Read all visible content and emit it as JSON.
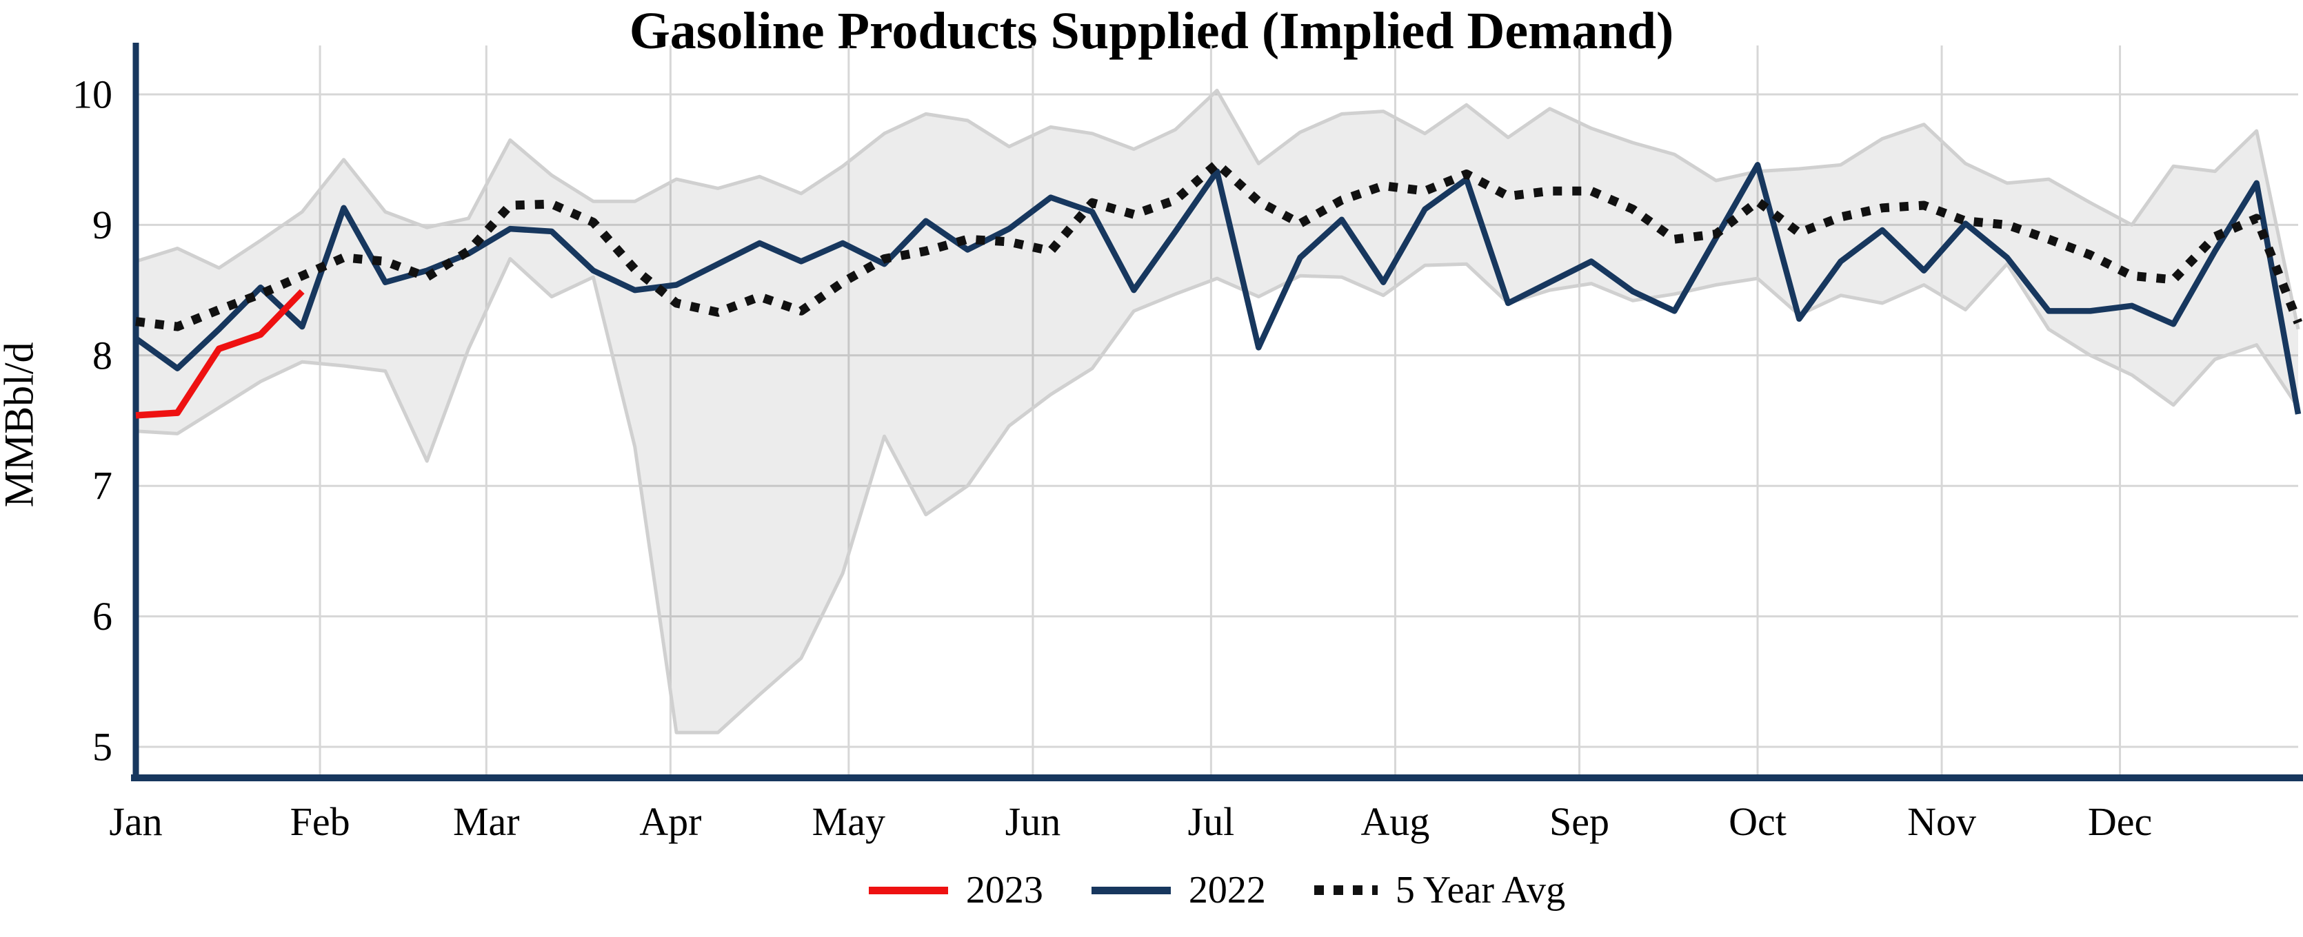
{
  "title": "Gasoline Products Supplied (Implied Demand)",
  "y_axis_label": "MMBbl/d",
  "legend": {
    "items": [
      {
        "label": "2023",
        "color": "#ee1111",
        "style": "solid"
      },
      {
        "label": "2022",
        "color": "#17375e",
        "style": "solid"
      },
      {
        "label": "5 Year Avg",
        "color": "#111111",
        "style": "dotted"
      }
    ]
  },
  "colors": {
    "red_2023": "#ee1111",
    "navy_2022": "#17375e",
    "avg_black": "#111111",
    "band_fill": "rgba(0,0,0,0.075)",
    "band_edge": "#d0d0d0",
    "grid": "#d7d7d7",
    "spine": "#17375e"
  },
  "chart_data": {
    "type": "line",
    "title": "Gasoline Products Supplied (Implied Demand)",
    "xlabel": "",
    "ylabel": "MMBbl/d",
    "x_unit": "weeks (Jan-Dec)",
    "x_tick_labels": [
      "Jan",
      "Feb",
      "Mar",
      "Apr",
      "May",
      "Jun",
      "Jul",
      "Aug",
      "Sep",
      "Oct",
      "Nov",
      "Dec"
    ],
    "y_ticks": [
      10,
      9,
      8,
      7,
      6,
      5
    ],
    "ylim": [
      4.77,
      10.38
    ],
    "grid": true,
    "legend_position": "bottom-center",
    "weeks": 53,
    "series": [
      {
        "name": "2022",
        "style": "solid",
        "color": "#17375e",
        "values": [
          8.13,
          7.9,
          8.2,
          8.52,
          8.22,
          9.13,
          8.56,
          8.65,
          8.78,
          8.97,
          8.95,
          8.65,
          8.5,
          8.54,
          8.7,
          8.86,
          8.72,
          8.86,
          8.7,
          9.03,
          8.81,
          8.97,
          9.21,
          9.1,
          8.5,
          8.95,
          9.41,
          8.06,
          8.75,
          9.04,
          8.56,
          9.12,
          9.35,
          8.4,
          8.56,
          8.72,
          8.49,
          8.34,
          8.9,
          9.46,
          8.28,
          8.72,
          8.96,
          8.65,
          9.01,
          8.75,
          8.34,
          8.34,
          8.38,
          8.24,
          8.8,
          9.32,
          7.55
        ]
      },
      {
        "name": "5 Year Avg",
        "style": "dotted",
        "color": "#111111",
        "values": [
          8.26,
          8.22,
          8.35,
          8.47,
          8.61,
          8.75,
          8.72,
          8.6,
          8.8,
          9.15,
          9.16,
          9.02,
          8.66,
          8.4,
          8.33,
          8.45,
          8.34,
          8.56,
          8.74,
          8.8,
          8.89,
          8.87,
          8.8,
          9.17,
          9.08,
          9.19,
          9.47,
          9.18,
          9.01,
          9.19,
          9.3,
          9.26,
          9.39,
          9.22,
          9.26,
          9.26,
          9.12,
          8.89,
          8.93,
          9.18,
          8.94,
          9.06,
          9.13,
          9.15,
          9.03,
          9.0,
          8.89,
          8.77,
          8.61,
          8.58,
          8.91,
          9.05,
          8.25
        ]
      },
      {
        "name": "2023",
        "style": "solid",
        "color": "#ee1111",
        "values": [
          7.54,
          7.56,
          8.05,
          8.16,
          8.49
        ]
      }
    ],
    "band": {
      "name": "5 Year Range",
      "max": [
        8.72,
        8.82,
        8.67,
        8.88,
        9.1,
        9.5,
        9.1,
        8.98,
        9.05,
        9.65,
        9.38,
        9.18,
        9.18,
        9.35,
        9.28,
        9.37,
        9.24,
        9.45,
        9.7,
        9.85,
        9.8,
        9.6,
        9.75,
        9.7,
        9.58,
        9.73,
        10.03,
        9.47,
        9.71,
        9.85,
        9.87,
        9.7,
        9.92,
        9.67,
        9.89,
        9.74,
        9.63,
        9.54,
        9.34,
        9.41,
        9.43,
        9.46,
        9.66,
        9.77,
        9.47,
        9.32,
        9.35,
        9.17,
        9.0,
        9.45,
        9.41,
        9.72,
        8.2
      ],
      "min": [
        7.42,
        7.4,
        7.6,
        7.8,
        7.95,
        7.92,
        7.88,
        7.19,
        8.05,
        8.74,
        8.45,
        8.6,
        7.3,
        5.11,
        5.11,
        5.4,
        5.68,
        6.33,
        7.38,
        6.78,
        7.0,
        7.46,
        7.7,
        7.9,
        8.34,
        8.47,
        8.59,
        8.45,
        8.61,
        8.6,
        8.46,
        8.69,
        8.7,
        8.4,
        8.5,
        8.55,
        8.42,
        8.47,
        8.54,
        8.59,
        8.31,
        8.46,
        8.4,
        8.54,
        8.35,
        8.7,
        8.2,
        8.0,
        7.85,
        7.62,
        7.97,
        8.08,
        7.6
      ]
    }
  }
}
